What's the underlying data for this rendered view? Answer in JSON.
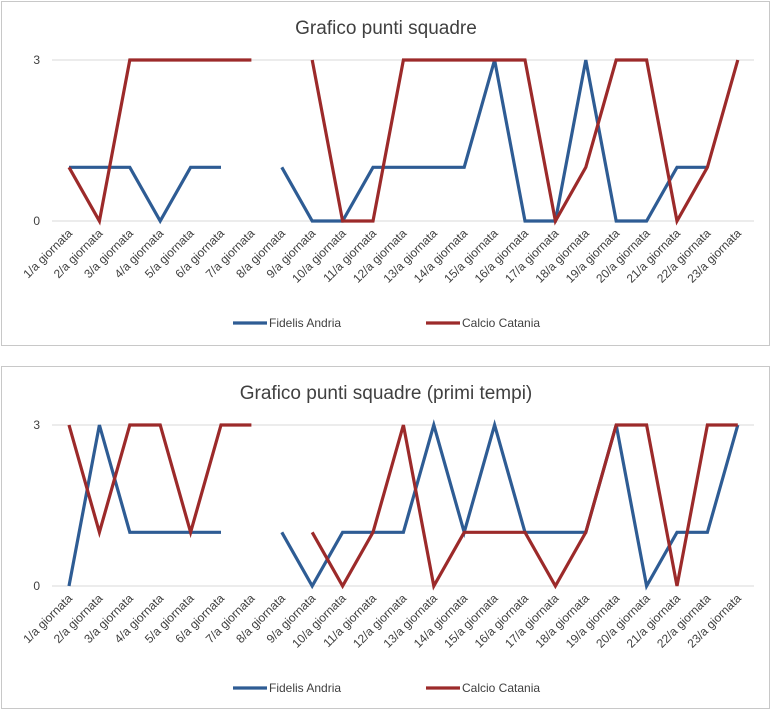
{
  "colors": {
    "fidelis": "#2e5c94",
    "catania": "#9c2a2a"
  },
  "chart_data": [
    {
      "type": "line",
      "title": "Grafico punti squadre",
      "categories": [
        "1/a giornata",
        "2/a giornata",
        "3/a giornata",
        "4/a giornata",
        "5/a giornata",
        "6/a giornata",
        "7/a giornata",
        "8/a giornata",
        "9/a giornata",
        "10/a giornata",
        "11/a giornata",
        "12/a giornata",
        "13/a giornata",
        "14/a giornata",
        "15/a giornata",
        "16/a giornata",
        "17/a giornata",
        "18/a giornata",
        "19/a giornata",
        "20/a giornata",
        "21/a giornata",
        "22/a giornata",
        "23/a giornata"
      ],
      "yticks": [
        0,
        3
      ],
      "ylim": [
        0,
        3
      ],
      "legend": "bottom",
      "series": [
        {
          "name": "Fidelis Andria",
          "color_key": "fidelis",
          "values": [
            1,
            1,
            1,
            0,
            1,
            1,
            null,
            1,
            0,
            0,
            1,
            1,
            1,
            1,
            3,
            0,
            0,
            3,
            0,
            0,
            1,
            1,
            null
          ]
        },
        {
          "name": "Calcio Catania",
          "color_key": "catania",
          "values": [
            1,
            0,
            3,
            3,
            3,
            3,
            3,
            null,
            3,
            0,
            0,
            3,
            3,
            3,
            3,
            3,
            0,
            1,
            3,
            3,
            0,
            1,
            3
          ]
        }
      ]
    },
    {
      "type": "line",
      "title": "Grafico punti squadre (primi tempi)",
      "categories": [
        "1/a giornata",
        "2/a giornata",
        "3/a giornata",
        "4/a giornata",
        "5/a giornata",
        "6/a giornata",
        "7/a giornata",
        "8/a giornata",
        "9/a giornata",
        "10/a giornata",
        "11/a giornata",
        "12/a giornata",
        "13/a giornata",
        "14/a giornata",
        "15/a giornata",
        "16/a giornata",
        "17/a giornata",
        "18/a giornata",
        "19/a giornata",
        "20/a giornata",
        "21/a giornata",
        "22/a giornata",
        "23/a giornata"
      ],
      "yticks": [
        0,
        3
      ],
      "ylim": [
        0,
        3
      ],
      "legend": "bottom",
      "series": [
        {
          "name": "Fidelis Andria",
          "color_key": "fidelis",
          "values": [
            0,
            3,
            1,
            1,
            1,
            1,
            null,
            1,
            0,
            1,
            1,
            1,
            3,
            1,
            3,
            1,
            1,
            1,
            3,
            0,
            1,
            1,
            3
          ]
        },
        {
          "name": "Calcio Catania",
          "color_key": "catania",
          "values": [
            3,
            1,
            3,
            3,
            1,
            3,
            3,
            null,
            1,
            0,
            1,
            3,
            0,
            1,
            1,
            1,
            0,
            1,
            3,
            3,
            0,
            3,
            3
          ]
        }
      ]
    }
  ]
}
